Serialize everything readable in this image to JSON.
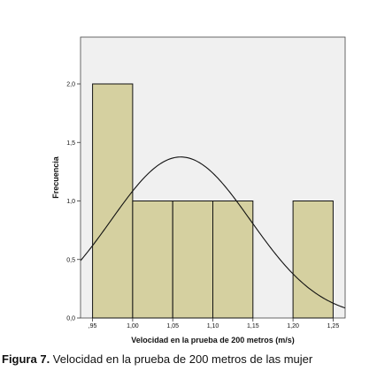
{
  "chart_data": {
    "type": "bar",
    "subtype": "histogram",
    "title": "",
    "xlabel": "Velocidad en la prueba de 200 metros (m/s)",
    "ylabel": "Frecuencia",
    "bins": [
      {
        "start": 0.95,
        "end": 1.0,
        "count": 2
      },
      {
        "start": 1.0,
        "end": 1.05,
        "count": 1
      },
      {
        "start": 1.05,
        "end": 1.1,
        "count": 1
      },
      {
        "start": 1.1,
        "end": 1.15,
        "count": 1
      },
      {
        "start": 1.15,
        "end": 1.2,
        "count": 0
      },
      {
        "start": 1.2,
        "end": 1.25,
        "count": 1
      }
    ],
    "xlim": [
      0.935,
      1.265
    ],
    "ylim": [
      0,
      2.4
    ],
    "xticks": [
      0.95,
      1.0,
      1.05,
      1.1,
      1.15,
      1.2,
      1.25
    ],
    "xtick_labels": [
      ",95",
      "1,00",
      "1,05",
      "1,10",
      "1,15",
      "1,20",
      "1,25"
    ],
    "yticks": [
      0,
      0.5,
      1.0,
      1.5,
      2.0
    ],
    "ytick_labels": [
      "0,0",
      "0,5",
      "1,0",
      "1,5",
      "2,0"
    ],
    "normal_curve": {
      "mean": 1.06,
      "sd": 0.087,
      "n": 6,
      "bin_width": 0.05
    },
    "grid": false,
    "legend": "none",
    "colors": {
      "plot_background": "#f0f0f0",
      "bar_fill": "#d5d0a0",
      "bar_stroke": "#111111",
      "curve": "#111111"
    }
  },
  "caption": {
    "label": "Figura 7.",
    "text": " Velocidad en la prueba de 200 metros de las mujer"
  }
}
